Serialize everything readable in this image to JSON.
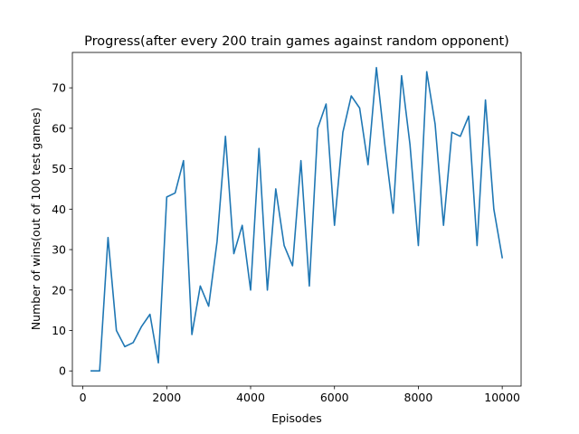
{
  "chart_data": {
    "type": "line",
    "title": "Progress(after every 200 train games against random opponent)",
    "xlabel": "Episodes",
    "ylabel": "Number of wins(out of 100 test games)",
    "xlim": [
      -250,
      10450
    ],
    "ylim": [
      -3.75,
      78.75
    ],
    "xticks": [
      0,
      2000,
      4000,
      6000,
      8000,
      10000
    ],
    "yticks": [
      0,
      10,
      20,
      30,
      40,
      50,
      60,
      70
    ],
    "grid": false,
    "series": [
      {
        "color": "#1f77b4",
        "x": [
          200,
          400,
          600,
          800,
          1000,
          1200,
          1400,
          1600,
          1800,
          2000,
          2200,
          2400,
          2600,
          2800,
          3000,
          3200,
          3400,
          3600,
          3800,
          4000,
          4200,
          4400,
          4600,
          4800,
          5000,
          5200,
          5400,
          5600,
          5800,
          6000,
          6200,
          6400,
          6600,
          6800,
          7000,
          7200,
          7400,
          7600,
          7800,
          8000,
          8200,
          8400,
          8600,
          8800,
          9000,
          9200,
          9400,
          9600,
          9800,
          10000
        ],
        "y": [
          0,
          0,
          33,
          10,
          6,
          7,
          11,
          14,
          2,
          43,
          44,
          52,
          9,
          21,
          16,
          32,
          58,
          29,
          36,
          20,
          55,
          20,
          45,
          31,
          26,
          52,
          21,
          60,
          66,
          36,
          59,
          68,
          65,
          51,
          75,
          56,
          39,
          73,
          56,
          31,
          74,
          61,
          36,
          59,
          58,
          63,
          31,
          67,
          40,
          28
        ]
      }
    ]
  }
}
